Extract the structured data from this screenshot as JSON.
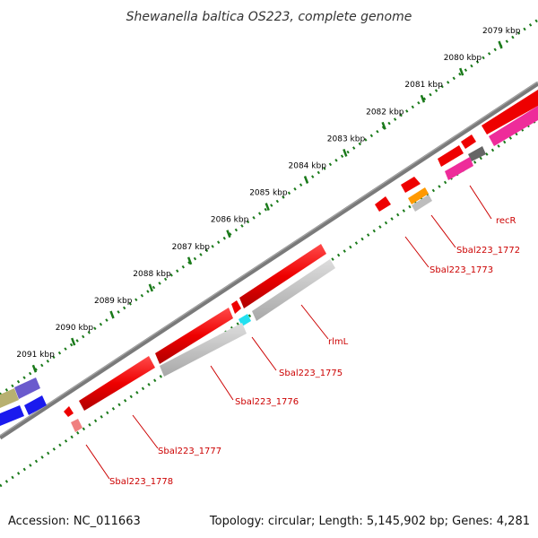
{
  "title": "Shewanella baltica OS223, complete genome",
  "accession": "Accession: NC_011663",
  "topology": "Topology: circular; Length: 5,145,902 bp; Genes: 4,281",
  "ticks": [
    "2079 kbp",
    "2080 kbp",
    "2081 kbp",
    "2082 kbp",
    "2083 kbp",
    "2084 kbp",
    "2085 kbp",
    "2086 kbp",
    "2087 kbp",
    "2088 kbp",
    "2089 kbp",
    "2090 kbp",
    "2091 kbp"
  ],
  "genes": [
    {
      "label": "recR",
      "color": "#cc0000"
    },
    {
      "label": "Sbal223_1772",
      "color": "#cc0000"
    },
    {
      "label": "Sbal223_1773",
      "color": "#cc0000"
    },
    {
      "label": "rlmL",
      "color": "#cc0000"
    },
    {
      "label": "Sbal223_1775",
      "color": "#cc0000"
    },
    {
      "label": "Sbal223_1776",
      "color": "#cc0000"
    },
    {
      "label": "Sbal223_1777",
      "color": "#cc0000"
    },
    {
      "label": "Sbal223_1778",
      "color": "#cc0000"
    }
  ],
  "colors": {
    "backbone": "#7a7a7a",
    "ticks": "#1a7a1a",
    "gene_red": "#ee0000",
    "gene_magenta": "#ee2c9a",
    "gene_grey": "#bdbdbd",
    "gene_darkgrey": "#666666",
    "gene_cyan": "#22e0f0",
    "gene_orange": "#ff9900",
    "gene_blue": "#1a1aee",
    "gene_slateblue": "#6a5acd",
    "gene_olive": "#b8b070",
    "gene_pink": "#f08080"
  }
}
